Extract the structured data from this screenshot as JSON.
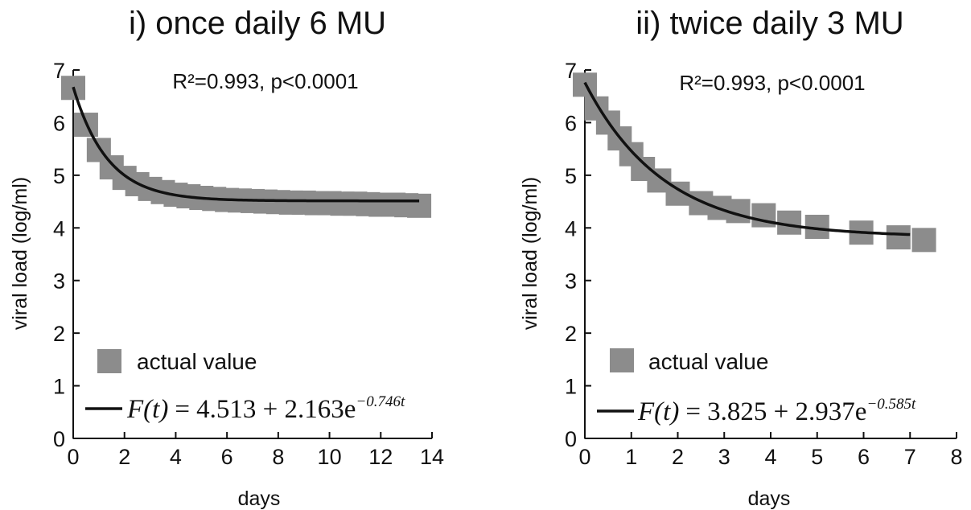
{
  "chart_data": [
    {
      "type": "scatter",
      "title": "i) once daily 6 MU",
      "xlabel": "days",
      "ylabel": "viral load (log/ml)",
      "xlim": [
        0,
        14
      ],
      "ylim": [
        0,
        7
      ],
      "xticks": [
        "0",
        "2",
        "4",
        "6",
        "8",
        "10",
        "12",
        "14"
      ],
      "yticks": [
        "0",
        "1",
        "2",
        "3",
        "4",
        "5",
        "6",
        "7"
      ],
      "stat_annotation": "R²=0.993, p<0.0001",
      "series": [
        {
          "name": "actual value",
          "x": [
            0,
            0.5,
            1,
            1.5,
            2,
            2.5,
            3,
            3.5,
            4,
            4.5,
            5,
            5.5,
            6,
            6.5,
            7,
            7.5,
            8,
            8.5,
            9,
            9.5,
            10,
            10.5,
            11,
            11.5,
            12,
            12.5,
            13,
            13.5
          ],
          "y": [
            6.66,
            5.96,
            5.48,
            5.15,
            4.95,
            4.83,
            4.74,
            4.68,
            4.63,
            4.6,
            4.57,
            4.55,
            4.53,
            4.52,
            4.51,
            4.5,
            4.49,
            4.48,
            4.48,
            4.47,
            4.47,
            4.46,
            4.46,
            4.45,
            4.44,
            4.44,
            4.43,
            4.42
          ]
        }
      ],
      "fit": {
        "name": "F(t) = 4.513 + 2.163e^(-0.746t)",
        "a": 4.513,
        "b": 2.163,
        "k": 0.746,
        "t_range": [
          0,
          13.5
        ],
        "formula_lhs": "F(t)",
        "formula_rhs": "= 4.513 + 2.163e",
        "formula_exp": "−0.746t"
      }
    },
    {
      "type": "scatter",
      "title": "ii) twice daily 3 MU",
      "xlabel": "days",
      "ylabel": "viral load (log/ml)",
      "xlim": [
        0,
        8
      ],
      "ylim": [
        0,
        7
      ],
      "xticks": [
        "0",
        "1",
        "2",
        "3",
        "4",
        "5",
        "6",
        "7",
        "8"
      ],
      "yticks": [
        "0",
        "1",
        "2",
        "3",
        "4",
        "5",
        "6",
        "7"
      ],
      "stat_annotation": "R²=0.993, p<0.0001",
      "series": [
        {
          "name": "actual value",
          "x": [
            0,
            0.25,
            0.5,
            0.75,
            1,
            1.25,
            1.6,
            2,
            2.5,
            2.9,
            3.3,
            3.85,
            4.4,
            5,
            5.95,
            6.75,
            7.3
          ],
          "y": [
            6.72,
            6.27,
            6.0,
            5.7,
            5.4,
            5.12,
            4.9,
            4.65,
            4.47,
            4.38,
            4.32,
            4.24,
            4.1,
            4.02,
            3.91,
            3.82,
            3.77
          ]
        }
      ],
      "fit": {
        "name": "F(t) = 3.825 + 2.937e^(-0.585t)",
        "a": 3.825,
        "b": 2.937,
        "k": 0.585,
        "t_range": [
          0,
          7
        ],
        "formula_lhs": "F(t)",
        "formula_rhs": "= 3.825 + 2.937e",
        "formula_exp": "−0.585t"
      }
    }
  ]
}
